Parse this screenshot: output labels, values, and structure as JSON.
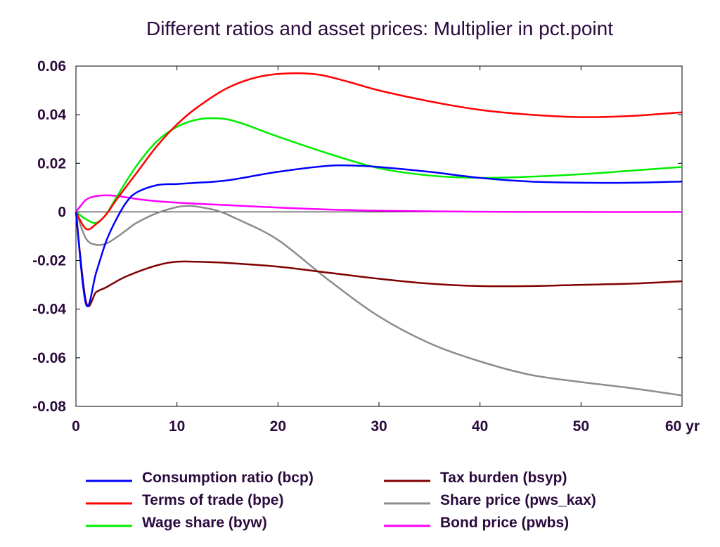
{
  "chart_data": {
    "type": "line",
    "title": "Different ratios and asset prices: Multiplier in pct.point",
    "x_unit_label": "yr",
    "xlim": [
      0,
      60
    ],
    "ylim": [
      -0.08,
      0.06
    ],
    "x_ticks": [
      0,
      10,
      20,
      30,
      40,
      50,
      60
    ],
    "x_tick_labels": [
      "0",
      "10",
      "20",
      "30",
      "40",
      "50",
      "60 yr"
    ],
    "y_ticks": [
      0.06,
      0.04,
      0.02,
      0,
      -0.02,
      -0.04,
      -0.06,
      -0.08
    ],
    "y_tick_labels": [
      "0.06",
      "0.04",
      "0.02",
      "0",
      "-0.02",
      "-0.04",
      "-0.06",
      "-0.08"
    ],
    "zero_line": true,
    "grid": false,
    "legend_position": "bottom",
    "series": [
      {
        "name": "Consumption ratio (bcp)",
        "color": "#0000ff",
        "x": [
          0,
          1,
          2,
          3,
          4,
          5,
          6,
          8,
          10,
          12,
          15,
          20,
          25,
          28,
          30,
          35,
          40,
          45,
          50,
          55,
          60
        ],
        "y": [
          0,
          -0.038,
          -0.025,
          -0.012,
          -0.003,
          0.004,
          0.008,
          0.011,
          0.0115,
          0.012,
          0.013,
          0.0165,
          0.019,
          0.019,
          0.0185,
          0.0165,
          0.014,
          0.0125,
          0.012,
          0.012,
          0.0125
        ]
      },
      {
        "name": "Terms of trade (bpe)",
        "color": "#ff0000",
        "x": [
          0,
          1,
          2,
          3,
          4,
          6,
          8,
          10,
          12,
          15,
          18,
          21,
          24,
          27,
          30,
          35,
          40,
          45,
          50,
          55,
          60
        ],
        "y": [
          0,
          -0.007,
          -0.005,
          -0.001,
          0.005,
          0.016,
          0.027,
          0.036,
          0.043,
          0.051,
          0.0555,
          0.057,
          0.0565,
          0.0535,
          0.05,
          0.0455,
          0.042,
          0.04,
          0.039,
          0.0395,
          0.041
        ]
      },
      {
        "name": "Wage share (byw)",
        "color": "#00ee00",
        "x": [
          0,
          1,
          2,
          3,
          4,
          6,
          8,
          10,
          12,
          14,
          16,
          20,
          25,
          30,
          35,
          40,
          45,
          50,
          55,
          60
        ],
        "y": [
          0,
          -0.003,
          -0.0045,
          -0.001,
          0.006,
          0.019,
          0.029,
          0.035,
          0.038,
          0.0385,
          0.037,
          0.031,
          0.024,
          0.018,
          0.015,
          0.014,
          0.0145,
          0.0155,
          0.017,
          0.0185
        ]
      },
      {
        "name": "Tax burden (bsyp)",
        "color": "#800000",
        "x": [
          0,
          1,
          2,
          3,
          5,
          8,
          10,
          12,
          15,
          20,
          25,
          30,
          35,
          40,
          45,
          50,
          55,
          60
        ],
        "y": [
          0,
          -0.037,
          -0.033,
          -0.031,
          -0.0265,
          -0.022,
          -0.0205,
          -0.0205,
          -0.021,
          -0.0225,
          -0.025,
          -0.0275,
          -0.0295,
          -0.0305,
          -0.0305,
          -0.03,
          -0.0295,
          -0.0285
        ]
      },
      {
        "name": "Share price (pws_kax)",
        "color": "#8c8c8c",
        "x": [
          0,
          1,
          2,
          3,
          4,
          5,
          6,
          8,
          10,
          11,
          12,
          14,
          16,
          20,
          25,
          30,
          35,
          40,
          45,
          50,
          55,
          60
        ],
        "y": [
          0,
          -0.011,
          -0.0135,
          -0.013,
          -0.0105,
          -0.0075,
          -0.0045,
          -0.0005,
          0.002,
          0.0025,
          0.0022,
          0.0005,
          -0.003,
          -0.0115,
          -0.028,
          -0.043,
          -0.054,
          -0.0615,
          -0.067,
          -0.07,
          -0.0725,
          -0.0755
        ]
      },
      {
        "name": "Bond price (pwbs)",
        "color": "#ff00ff",
        "x": [
          0,
          1,
          2,
          3,
          4,
          5,
          7,
          10,
          15,
          20,
          25,
          30,
          40,
          50,
          60
        ],
        "y": [
          0,
          0.005,
          0.0065,
          0.0068,
          0.0066,
          0.006,
          0.0048,
          0.0038,
          0.0028,
          0.0018,
          0.001,
          0.0005,
          0.0001,
          0.0,
          0.0
        ]
      }
    ]
  }
}
